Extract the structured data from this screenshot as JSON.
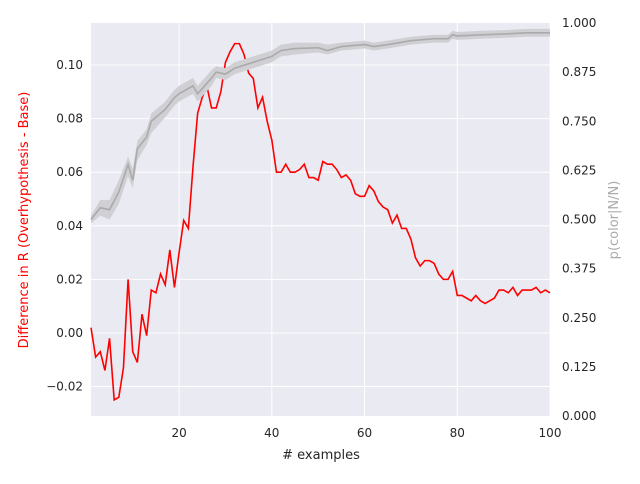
{
  "chart_data": {
    "type": "line",
    "xlabel": "# examples",
    "ylabel": "Difference in R (Overhypothesis - Base)",
    "y2label": "p(color|N/N)",
    "xlim": [
      1,
      100
    ],
    "xticks": [
      20,
      40,
      60,
      80,
      100
    ],
    "ylim": [
      -0.031,
      0.1157
    ],
    "yticks": [
      {
        "value": -0.02,
        "label": "−0.02"
      },
      {
        "value": 0,
        "label": "0.00"
      },
      {
        "value": 0.02,
        "label": "0.02"
      },
      {
        "value": 0.04,
        "label": "0.04"
      },
      {
        "value": 0.06,
        "label": "0.06"
      },
      {
        "value": 0.08,
        "label": "0.08"
      },
      {
        "value": 0.1,
        "label": "0.10"
      }
    ],
    "y2lim": [
      0,
      1
    ],
    "y2ticks": [
      {
        "value": 0,
        "label": "0.000"
      },
      {
        "value": 0.125,
        "label": "0.125"
      },
      {
        "value": 0.25,
        "label": "0.250"
      },
      {
        "value": 0.375,
        "label": "0.375"
      },
      {
        "value": 0.5,
        "label": "0.500"
      },
      {
        "value": 0.625,
        "label": "0.625"
      },
      {
        "value": 0.75,
        "label": "0.750"
      },
      {
        "value": 0.875,
        "label": "0.875"
      },
      {
        "value": 1,
        "label": "1.000"
      }
    ],
    "grid": true,
    "series": [
      {
        "color": "#ff0000",
        "x": [
          1,
          2,
          3,
          4,
          5,
          6,
          7,
          8,
          9,
          10,
          11,
          12,
          13,
          14,
          15,
          16,
          17,
          18,
          19,
          20,
          21,
          22,
          23,
          24,
          25,
          26,
          27,
          28,
          29,
          30,
          31,
          32,
          33,
          34,
          35,
          36,
          37,
          38,
          39,
          40,
          41,
          42,
          43,
          44,
          45,
          46,
          47,
          48,
          49,
          50,
          51,
          52,
          53,
          54,
          55,
          56,
          57,
          58,
          59,
          60,
          61,
          62,
          63,
          64,
          65,
          66,
          67,
          68,
          69,
          70,
          71,
          72,
          73,
          74,
          75,
          76,
          77,
          78,
          79,
          80,
          81,
          82,
          83,
          84,
          85,
          86,
          87,
          88,
          89,
          90,
          91,
          92,
          93,
          94,
          95,
          96,
          97,
          98,
          99,
          100
        ],
        "values": [
          0.002,
          -0.009,
          -0.007,
          -0.014,
          -0.002,
          -0.025,
          -0.024,
          -0.013,
          0.02,
          -0.007,
          -0.011,
          0.007,
          -0.001,
          0.016,
          0.015,
          0.022,
          0.018,
          0.031,
          0.017,
          0.03,
          0.042,
          0.039,
          0.062,
          0.082,
          0.088,
          0.092,
          0.084,
          0.084,
          0.09,
          0.101,
          0.105,
          0.108,
          0.108,
          0.104,
          0.097,
          0.095,
          0.084,
          0.088,
          0.079,
          0.072,
          0.06,
          0.06,
          0.063,
          0.06,
          0.06,
          0.061,
          0.063,
          0.058,
          0.058,
          0.057,
          0.064,
          0.063,
          0.063,
          0.061,
          0.058,
          0.059,
          0.057,
          0.052,
          0.051,
          0.051,
          0.055,
          0.053,
          0.049,
          0.047,
          0.046,
          0.041,
          0.044,
          0.039,
          0.039,
          0.035,
          0.028,
          0.025,
          0.027,
          0.027,
          0.026,
          0.022,
          0.02,
          0.02,
          0.023,
          0.014,
          0.014,
          0.013,
          0.012,
          0.014,
          0.012,
          0.011,
          0.012,
          0.013,
          0.016,
          0.016,
          0.015,
          0.017,
          0.014,
          0.016,
          0.016,
          0.016,
          0.017,
          0.015,
          0.016,
          0.015
        ]
      },
      {
        "color": "#aaaaaa",
        "axis": "y2",
        "band_color": "#cfcfd4",
        "x": [
          1,
          3,
          5,
          7,
          9,
          10,
          11,
          13,
          14,
          17,
          19,
          20,
          23,
          24,
          27,
          28,
          30,
          32,
          36,
          40,
          42,
          45,
          50,
          52,
          55,
          60,
          62,
          65,
          70,
          75,
          78,
          79,
          80,
          85,
          90,
          95,
          100
        ],
        "values": [
          0.5,
          0.53,
          0.525,
          0.57,
          0.64,
          0.6,
          0.68,
          0.71,
          0.75,
          0.78,
          0.81,
          0.82,
          0.84,
          0.82,
          0.86,
          0.875,
          0.87,
          0.885,
          0.9,
          0.915,
          0.93,
          0.935,
          0.937,
          0.93,
          0.94,
          0.945,
          0.94,
          0.945,
          0.955,
          0.96,
          0.96,
          0.97,
          0.967,
          0.97,
          0.972,
          0.975,
          0.975
        ],
        "lower": [
          0.49,
          0.51,
          0.5,
          0.54,
          0.61,
          0.58,
          0.65,
          0.69,
          0.72,
          0.76,
          0.79,
          0.8,
          0.82,
          0.8,
          0.84,
          0.86,
          0.855,
          0.87,
          0.885,
          0.9,
          0.915,
          0.92,
          0.925,
          0.92,
          0.93,
          0.935,
          0.93,
          0.935,
          0.945,
          0.95,
          0.95,
          0.96,
          0.957,
          0.96,
          0.962,
          0.965,
          0.965
        ],
        "upper": [
          0.51,
          0.55,
          0.55,
          0.6,
          0.66,
          0.63,
          0.7,
          0.73,
          0.77,
          0.8,
          0.83,
          0.84,
          0.86,
          0.84,
          0.88,
          0.89,
          0.885,
          0.9,
          0.915,
          0.93,
          0.945,
          0.95,
          0.95,
          0.945,
          0.95,
          0.955,
          0.95,
          0.955,
          0.965,
          0.97,
          0.97,
          0.98,
          0.977,
          0.98,
          0.982,
          0.985,
          0.985
        ]
      }
    ]
  }
}
